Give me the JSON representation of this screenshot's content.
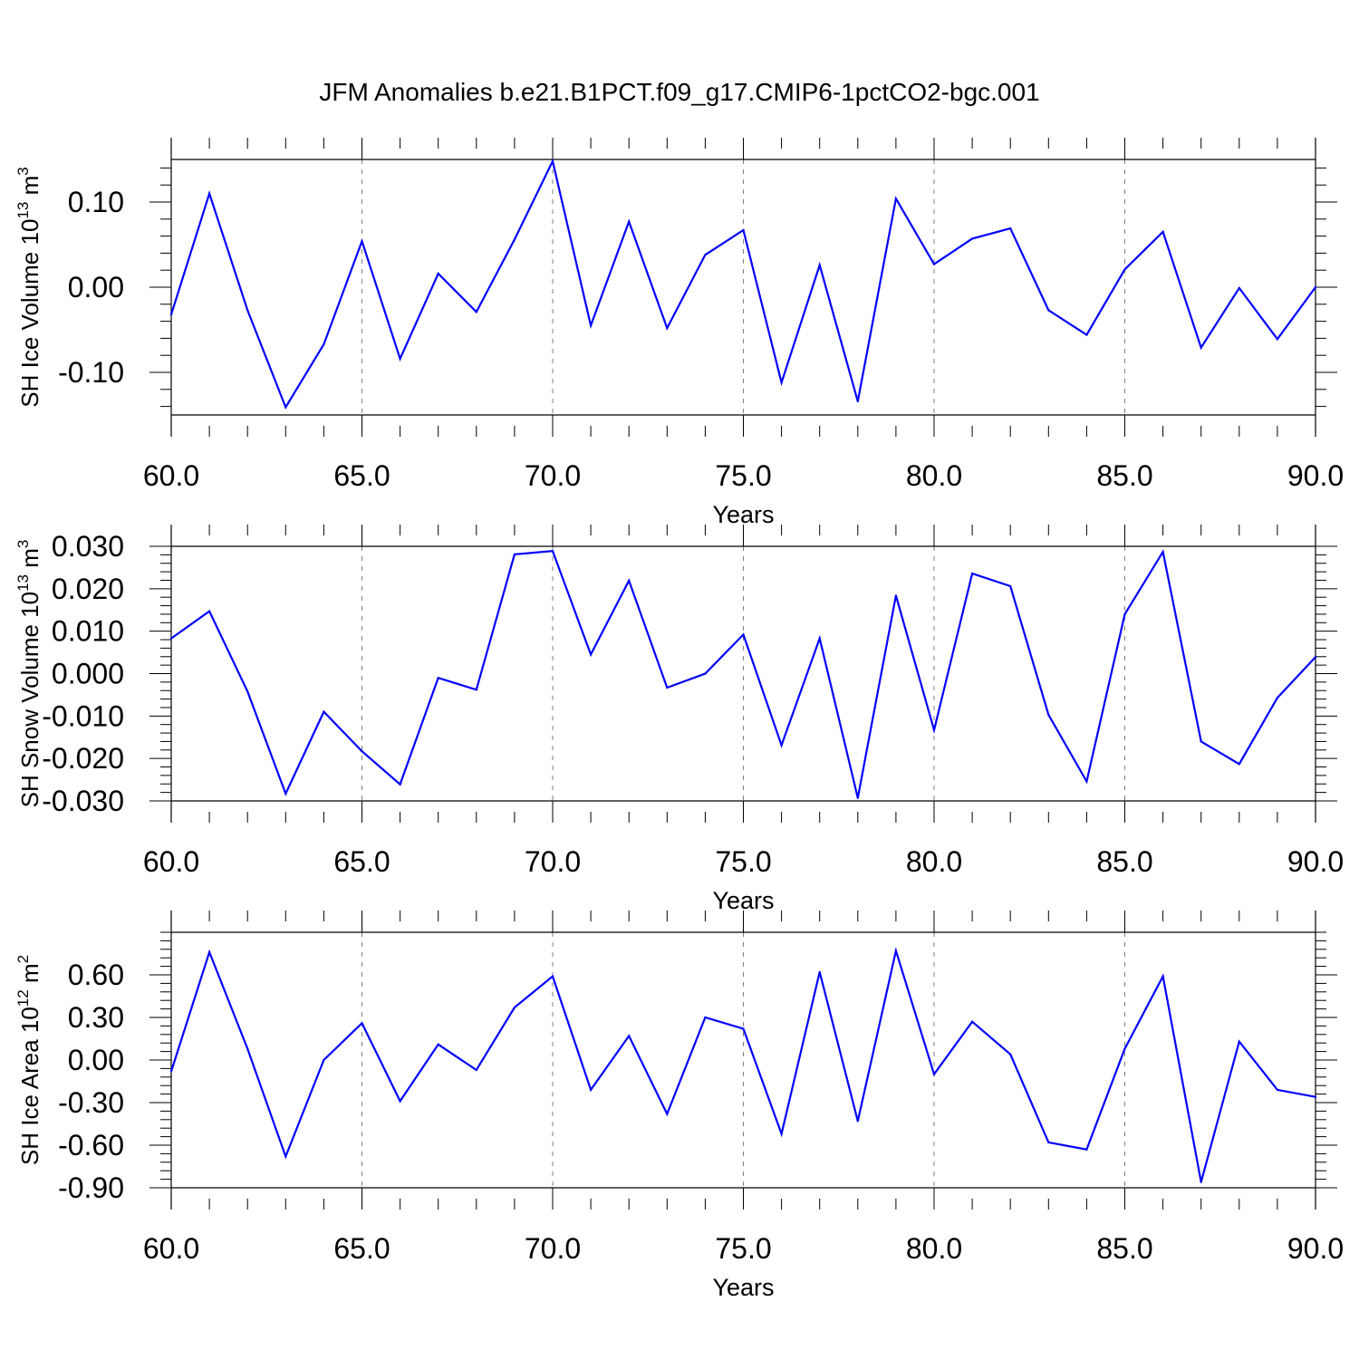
{
  "title": "JFM Anomalies b.e21.B1PCT.f09_g17.CMIP6-1pctCO2-bgc.001",
  "colors": {
    "line": "#0000ff",
    "axis": "#000000",
    "grid": "#808080"
  },
  "chart_data": [
    {
      "type": "line",
      "ylabel": "SH Ice Volume 10",
      "ylabel_exp": "13",
      "ylabel_unit": " m",
      "ylabel_unit_exp": "3",
      "xlabel": "Years",
      "xlim": [
        60,
        90
      ],
      "ylim": [
        -0.15,
        0.15
      ],
      "xticks": [
        "60.0",
        "65.0",
        "70.0",
        "75.0",
        "80.0",
        "85.0",
        "90.0"
      ],
      "yticks": [
        {
          "v": 0.1,
          "label": "0.10"
        },
        {
          "v": 0.0,
          "label": "0.00"
        },
        {
          "v": -0.1,
          "label": "-0.10"
        }
      ],
      "x": [
        60,
        61,
        62,
        63,
        64,
        65,
        66,
        67,
        68,
        69,
        70,
        71,
        72,
        73,
        74,
        75,
        76,
        77,
        78,
        79,
        80,
        81,
        82,
        83,
        84,
        85,
        86,
        87,
        88,
        89,
        90
      ],
      "y": [
        -0.032,
        0.11,
        -0.027,
        -0.141,
        -0.067,
        0.054,
        -0.084,
        0.016,
        -0.029,
        0.056,
        0.148,
        -0.045,
        0.077,
        -0.048,
        0.038,
        0.067,
        -0.112,
        0.026,
        -0.134,
        0.104,
        0.027,
        0.057,
        0.069,
        -0.027,
        -0.056,
        0.021,
        0.065,
        -0.071,
        -0.001,
        -0.061,
        0.0
      ]
    },
    {
      "type": "line",
      "ylabel": "SH Snow Volume 10",
      "ylabel_exp": "13",
      "ylabel_unit": " m",
      "ylabel_unit_exp": "3",
      "xlabel": "Years",
      "xlim": [
        60,
        90
      ],
      "ylim": [
        -0.03,
        0.03
      ],
      "xticks": [
        "60.0",
        "65.0",
        "70.0",
        "75.0",
        "80.0",
        "85.0",
        "90.0"
      ],
      "yticks": [
        {
          "v": 0.03,
          "label": "0.030"
        },
        {
          "v": 0.02,
          "label": "0.020"
        },
        {
          "v": 0.01,
          "label": "0.010"
        },
        {
          "v": 0.0,
          "label": "0.000"
        },
        {
          "v": -0.01,
          "label": "-0.010"
        },
        {
          "v": -0.02,
          "label": "-0.020"
        },
        {
          "v": -0.03,
          "label": "-0.030"
        }
      ],
      "x": [
        60,
        61,
        62,
        63,
        64,
        65,
        66,
        67,
        68,
        69,
        70,
        71,
        72,
        73,
        74,
        75,
        76,
        77,
        78,
        79,
        80,
        81,
        82,
        83,
        84,
        85,
        86,
        87,
        88,
        89,
        90
      ],
      "y": [
        0.0083,
        0.0147,
        -0.0042,
        -0.0283,
        -0.009,
        -0.0183,
        -0.0261,
        -0.001,
        -0.0038,
        0.0281,
        0.0289,
        0.0045,
        0.0219,
        -0.0033,
        0.0,
        0.0092,
        -0.0169,
        0.0083,
        -0.0293,
        0.0184,
        -0.0133,
        0.0236,
        0.0206,
        -0.0097,
        -0.0254,
        0.014,
        0.0287,
        -0.016,
        -0.0213,
        -0.0057,
        0.0039
      ]
    },
    {
      "type": "line",
      "ylabel": "SH Ice Area 10",
      "ylabel_exp": "12",
      "ylabel_unit": " m",
      "ylabel_unit_exp": "2",
      "xlabel": "Years",
      "xlim": [
        60,
        90
      ],
      "ylim": [
        -0.9,
        0.9
      ],
      "xticks": [
        "60.0",
        "65.0",
        "70.0",
        "75.0",
        "80.0",
        "85.0",
        "90.0"
      ],
      "yticks": [
        {
          "v": 0.6,
          "label": "0.60"
        },
        {
          "v": 0.3,
          "label": "0.30"
        },
        {
          "v": 0.0,
          "label": "0.00"
        },
        {
          "v": -0.3,
          "label": "-0.30"
        },
        {
          "v": -0.6,
          "label": "-0.60"
        },
        {
          "v": -0.9,
          "label": "-0.90"
        }
      ],
      "x": [
        60,
        61,
        62,
        63,
        64,
        65,
        66,
        67,
        68,
        69,
        70,
        71,
        72,
        73,
        74,
        75,
        76,
        77,
        78,
        79,
        80,
        81,
        82,
        83,
        84,
        85,
        86,
        87,
        88,
        89,
        90
      ],
      "y": [
        -0.08,
        0.76,
        0.08,
        -0.68,
        0.0,
        0.26,
        -0.29,
        0.11,
        -0.07,
        0.37,
        0.59,
        -0.21,
        0.17,
        -0.38,
        0.3,
        0.22,
        -0.52,
        0.62,
        -0.43,
        0.77,
        -0.1,
        0.27,
        0.04,
        -0.58,
        -0.63,
        0.08,
        0.59,
        -0.86,
        0.13,
        -0.21,
        -0.26
      ]
    }
  ]
}
